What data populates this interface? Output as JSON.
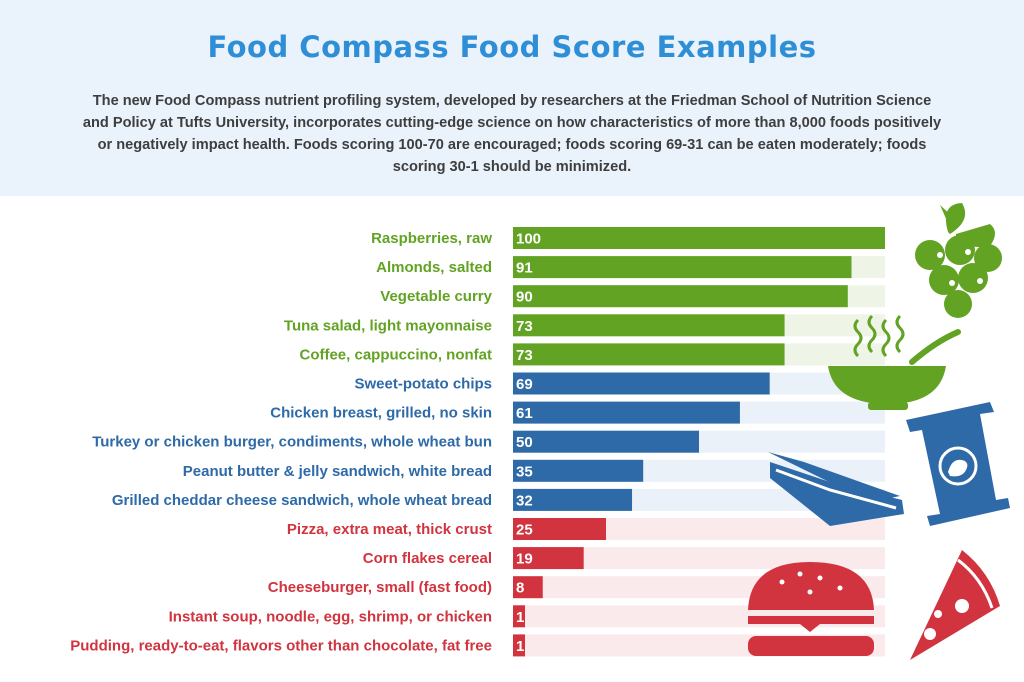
{
  "header": {
    "title": "Food Compass Food Score Examples",
    "subtitle": "The new Food Compass nutrient profiling system, developed by researchers at the Friedman School of Nutrition Science and Policy at Tufts University, incorporates cutting-edge science on how characteristics of more than 8,000 foods positively or negatively impact health. Foods scoring 100-70 are encouraged; foods scoring 69-31 can be eaten moderately;  foods scoring 30-1 should be minimized."
  },
  "colors": {
    "encouraged": "#62a324",
    "moderate": "#2e6aa8",
    "minimized": "#d1343f",
    "title": "#2f8fd6",
    "header_bg": "#eaf2fb"
  },
  "chart_data": {
    "type": "bar",
    "orientation": "horizontal",
    "xlim": [
      0,
      100
    ],
    "categories": [
      "Raspberries, raw",
      "Almonds, salted",
      "Vegetable curry",
      "Tuna salad, light mayonnaise",
      "Coffee, cappuccino, nonfat",
      "Sweet-potato chips",
      "Chicken breast, grilled, no skin",
      "Turkey or chicken burger, condiments, whole wheat bun",
      "Peanut butter & jelly sandwich, white bread",
      "Grilled cheddar cheese sandwich, whole wheat bread",
      "Pizza, extra meat, thick crust",
      "Corn flakes cereal",
      "Cheeseburger, small (fast food)",
      "Instant soup, noodle, egg, shrimp, or chicken",
      "Pudding, ready-to-eat, flavors other than chocolate, fat free"
    ],
    "values": [
      100,
      91,
      90,
      73,
      73,
      69,
      61,
      50,
      35,
      32,
      25,
      19,
      8,
      1,
      1
    ],
    "groups": [
      "encouraged",
      "encouraged",
      "encouraged",
      "encouraged",
      "encouraged",
      "moderate",
      "moderate",
      "moderate",
      "moderate",
      "moderate",
      "minimized",
      "minimized",
      "minimized",
      "minimized",
      "minimized"
    ],
    "data_labels": [
      "100",
      "91",
      "90",
      "73",
      "73",
      "69",
      "61",
      "50",
      "35",
      "32",
      "25",
      "19",
      "8",
      "1",
      "1"
    ]
  },
  "illustrations": [
    "grapes-icon",
    "soup-bowl-icon",
    "chips-bag-icon",
    "sandwich-icon",
    "burger-icon",
    "pizza-slice-icon"
  ]
}
